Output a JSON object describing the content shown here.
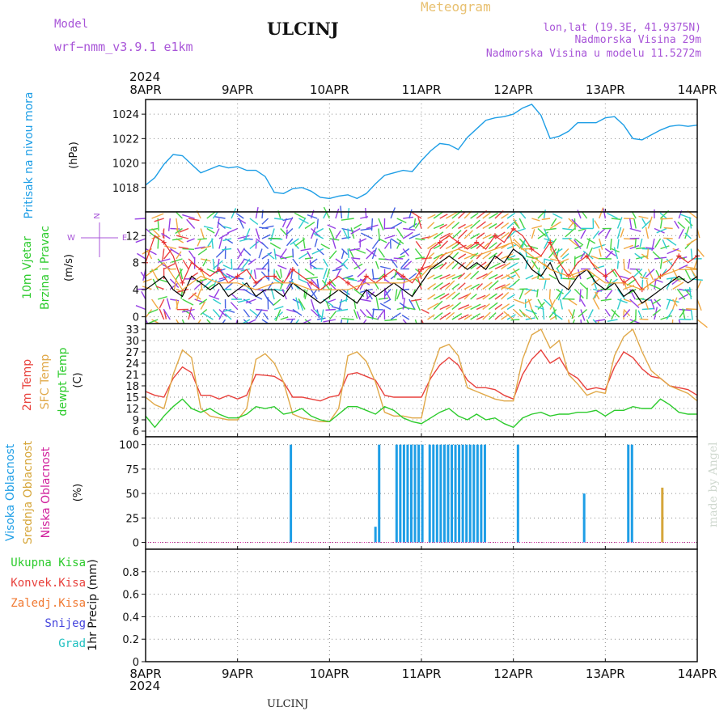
{
  "header": {
    "model_label": "Model",
    "model_name": "wrf−nmm_v3.9.1  e1km",
    "title": "ULCINJ",
    "meteogram": "Meteogram",
    "lonlat": "lon,lat (19.3E, 41.9375N)",
    "elevation": "Nadmorska Visina 29m",
    "model_elevation": "Nadmorska Visina u modelu 11.5272m"
  },
  "footer": {
    "station": "ULCINJ",
    "credit": "made by Angel"
  },
  "colors": {
    "pressure": "#1e9ee6",
    "t2m": "#e8413c",
    "tsfc": "#e0a848",
    "dewpt": "#2ccb2c",
    "high_cloud": "#1e9ee6",
    "mid_cloud": "#d6a63a",
    "low_cloud": "#d0209c",
    "wind_purple": "#8a2be2",
    "wind_blue": "#3050e0",
    "wind_cyan": "#18c8c8",
    "wind_green": "#30d030",
    "wind_orange": "#f0a030",
    "wind_red": "#e83030"
  },
  "axes": {
    "year_top": "2024",
    "year_bottom": "2024",
    "x_ticks": [
      "8APR",
      "9APR",
      "10APR",
      "11APR",
      "12APR",
      "13APR",
      "14APR"
    ]
  },
  "chart_data": [
    {
      "type": "line",
      "panel": "pressure",
      "ylabel_left": "Pritisak na nivou mora",
      "ylabel_unit": "(hPa)",
      "ylim": [
        1016,
        1025.2
      ],
      "yticks": [
        1018,
        1020,
        1022,
        1024
      ],
      "xlim": [
        0,
        6
      ],
      "grid": true,
      "series": [
        {
          "color": "#1e9ee6",
          "x": [
            0.0,
            0.1,
            0.2,
            0.3,
            0.4,
            0.5,
            0.6,
            0.7,
            0.8,
            0.9,
            1.0,
            1.1,
            1.2,
            1.3,
            1.4,
            1.5,
            1.6,
            1.7,
            1.8,
            1.9,
            2.0,
            2.1,
            2.2,
            2.3,
            2.4,
            2.5,
            2.6,
            2.7,
            2.8,
            2.9,
            3.0,
            3.1,
            3.2,
            3.3,
            3.4,
            3.5,
            3.6,
            3.7,
            3.8,
            3.9,
            4.0,
            4.1,
            4.2,
            4.3,
            4.4,
            4.5,
            4.6,
            4.7,
            4.8,
            4.9,
            5.0,
            5.1,
            5.2,
            5.3,
            5.4,
            5.5,
            5.6,
            5.7,
            5.8,
            5.9,
            6.0
          ],
          "y": [
            1018.2,
            1018.8,
            1019.9,
            1020.7,
            1020.6,
            1019.9,
            1019.2,
            1019.5,
            1019.8,
            1019.6,
            1019.7,
            1019.4,
            1019.4,
            1018.9,
            1017.6,
            1017.5,
            1017.9,
            1018.0,
            1017.7,
            1017.2,
            1017.1,
            1017.3,
            1017.4,
            1017.1,
            1017.5,
            1018.3,
            1019.0,
            1019.2,
            1019.4,
            1019.3,
            1020.2,
            1021.0,
            1021.6,
            1021.5,
            1021.1,
            1022.1,
            1022.8,
            1023.5,
            1023.7,
            1023.8,
            1024.0,
            1024.5,
            1024.8,
            1023.9,
            1022.0,
            1022.2,
            1022.6,
            1023.3,
            1023.3,
            1023.3,
            1023.7,
            1023.8,
            1023.1,
            1022.0,
            1021.9,
            1022.3,
            1022.7,
            1023.0,
            1023.1,
            1023.0,
            1023.1
          ]
        }
      ]
    },
    {
      "type": "line",
      "panel": "wind",
      "ylabel_left": "10m Vjetar",
      "ylabel_left2": "Brzina i Pravac",
      "ylabel_unit": "(m/s)",
      "compass": [
        "N",
        "E",
        "W"
      ],
      "ylim": [
        -1,
        15.5
      ],
      "yticks": [
        0,
        4,
        8,
        12
      ],
      "xlim": [
        0,
        6
      ],
      "grid": true,
      "series": [
        {
          "name": "speed",
          "color": "#000000",
          "x": [
            0.0,
            0.1,
            0.2,
            0.3,
            0.4,
            0.5,
            0.6,
            0.7,
            0.8,
            0.9,
            1.0,
            1.1,
            1.2,
            1.3,
            1.4,
            1.5,
            1.6,
            1.7,
            1.8,
            1.9,
            2.0,
            2.1,
            2.2,
            2.3,
            2.4,
            2.5,
            2.6,
            2.7,
            2.8,
            2.9,
            3.0,
            3.1,
            3.2,
            3.3,
            3.4,
            3.5,
            3.6,
            3.7,
            3.8,
            3.9,
            4.0,
            4.1,
            4.2,
            4.3,
            4.4,
            4.5,
            4.6,
            4.7,
            4.8,
            4.9,
            5.0,
            5.1,
            5.2,
            5.3,
            5.4,
            5.5,
            5.6,
            5.7,
            5.8,
            5.9,
            6.0
          ],
          "y": [
            4,
            5,
            6,
            4,
            3,
            6,
            5,
            4,
            5,
            3,
            4,
            5,
            3,
            4,
            4,
            3,
            5,
            4,
            3,
            2,
            3,
            4,
            3,
            2,
            4,
            3,
            4,
            5,
            4,
            3,
            5,
            7,
            8,
            9,
            8,
            7,
            8,
            7,
            9,
            8,
            10,
            9,
            7,
            6,
            8,
            5,
            4,
            6,
            7,
            5,
            4,
            5,
            3,
            4,
            2,
            3,
            4,
            5,
            6,
            5,
            6
          ]
        },
        {
          "name": "gust",
          "color": "#e83030",
          "x": [
            0.0,
            0.1,
            0.2,
            0.3,
            0.4,
            0.5,
            0.6,
            0.7,
            0.8,
            0.9,
            1.0,
            1.1,
            1.2,
            1.3,
            1.4,
            1.5,
            1.6,
            1.7,
            1.8,
            1.9,
            2.0,
            2.1,
            2.2,
            2.3,
            2.4,
            2.5,
            2.6,
            2.7,
            2.8,
            2.9,
            3.0,
            3.1,
            3.2,
            3.3,
            3.4,
            3.5,
            3.6,
            3.7,
            3.8,
            3.9,
            4.0,
            4.1,
            4.2,
            4.3,
            4.4,
            4.5,
            4.6,
            4.7,
            4.8,
            4.9,
            5.0,
            5.1,
            5.2,
            5.3,
            5.4,
            5.5,
            5.6,
            5.7,
            5.8,
            5.9,
            6.0
          ],
          "y": [
            8,
            12,
            11,
            9,
            5,
            8,
            7,
            6,
            7,
            5,
            6,
            7,
            5,
            6,
            6,
            5,
            7,
            6,
            5,
            4,
            5,
            6,
            5,
            4,
            6,
            5,
            6,
            7,
            6,
            5,
            7,
            10,
            11,
            12,
            11,
            10,
            11,
            10,
            12,
            11,
            13,
            12,
            10,
            9,
            11,
            8,
            6,
            8,
            9,
            7,
            6,
            7,
            5,
            6,
            4,
            5,
            6,
            7,
            9,
            8,
            9
          ]
        },
        {
          "name": "speed_orange",
          "color": "#f0a030",
          "x": [
            0.0,
            0.2,
            0.4,
            0.6,
            0.8,
            1.0,
            1.2,
            1.4,
            1.6,
            1.8,
            2.0,
            2.2,
            2.4,
            2.6,
            2.8,
            3.0,
            3.2,
            3.4,
            3.6,
            3.8,
            4.0,
            4.2,
            4.4,
            4.6,
            4.8,
            5.0,
            5.2,
            5.4,
            5.6,
            5.8,
            6.0
          ],
          "y": [
            6,
            8,
            4,
            6,
            5,
            5,
            4,
            5,
            5,
            4,
            4,
            4,
            5,
            5,
            5,
            6,
            9,
            10,
            9,
            10,
            11,
            9,
            7,
            6,
            7,
            5,
            5,
            4,
            6,
            7,
            7
          ]
        }
      ]
    },
    {
      "type": "line",
      "panel": "temperature",
      "ylabel_left": "2m Temp",
      "ylabel_left2": "SFC Temp",
      "ylabel_left3": "dewpt Temp",
      "ylabel_unit": "(C)",
      "ylim": [
        4.5,
        34.5
      ],
      "yticks": [
        6,
        9,
        12,
        15,
        18,
        21,
        24,
        27,
        30,
        33
      ],
      "xlim": [
        0,
        6
      ],
      "grid": true,
      "series": [
        {
          "name": "2m Temp",
          "color": "#e8413c",
          "x": [
            0.0,
            0.1,
            0.2,
            0.3,
            0.4,
            0.5,
            0.6,
            0.7,
            0.8,
            0.9,
            1.0,
            1.1,
            1.2,
            1.3,
            1.4,
            1.5,
            1.6,
            1.7,
            1.8,
            1.9,
            2.0,
            2.1,
            2.2,
            2.3,
            2.4,
            2.5,
            2.6,
            2.7,
            2.8,
            2.9,
            3.0,
            3.1,
            3.2,
            3.3,
            3.4,
            3.5,
            3.6,
            3.7,
            3.8,
            3.9,
            4.0,
            4.1,
            4.2,
            4.3,
            4.4,
            4.5,
            4.6,
            4.7,
            4.8,
            4.9,
            5.0,
            5.1,
            5.2,
            5.3,
            5.4,
            5.5,
            5.6,
            5.7,
            5.8,
            5.9,
            6.0
          ],
          "y": [
            16.5,
            15.5,
            15.0,
            20.0,
            23.0,
            21.5,
            15.5,
            15.5,
            14.5,
            15.5,
            14.5,
            15.5,
            21.0,
            20.8,
            20.5,
            19.0,
            15.0,
            15.0,
            14.5,
            14.0,
            15.0,
            15.5,
            21.0,
            21.5,
            20.5,
            19.5,
            15.5,
            15.0,
            15.0,
            15.0,
            15.0,
            20.0,
            23.5,
            25.5,
            23.5,
            19.5,
            17.5,
            17.5,
            17.0,
            15.5,
            14.5,
            21.0,
            25.0,
            27.5,
            24.0,
            25.5,
            21.5,
            20.0,
            17.0,
            17.5,
            17.0,
            23.0,
            27.0,
            25.5,
            22.5,
            20.5,
            20.0,
            18.0,
            17.5,
            17.0,
            15.5
          ]
        },
        {
          "name": "SFC Temp",
          "color": "#e0a848",
          "x": [
            0.0,
            0.1,
            0.2,
            0.3,
            0.4,
            0.5,
            0.6,
            0.7,
            0.8,
            0.9,
            1.0,
            1.1,
            1.2,
            1.3,
            1.4,
            1.5,
            1.6,
            1.7,
            1.8,
            1.9,
            2.0,
            2.1,
            2.2,
            2.3,
            2.4,
            2.5,
            2.6,
            2.7,
            2.8,
            2.9,
            3.0,
            3.1,
            3.2,
            3.3,
            3.4,
            3.5,
            3.6,
            3.7,
            3.8,
            3.9,
            4.0,
            4.1,
            4.2,
            4.3,
            4.4,
            4.5,
            4.6,
            4.7,
            4.8,
            4.9,
            5.0,
            5.1,
            5.2,
            5.3,
            5.4,
            5.5,
            5.6,
            5.7,
            5.8,
            5.9,
            6.0
          ],
          "y": [
            15.0,
            13.0,
            12.0,
            21.0,
            27.5,
            25.5,
            12.0,
            10.0,
            9.5,
            9.0,
            9.0,
            12.0,
            25.0,
            26.5,
            24.0,
            19.0,
            10.5,
            9.5,
            9.0,
            8.5,
            8.5,
            12.0,
            26.0,
            27.0,
            24.5,
            19.0,
            11.0,
            10.0,
            10.0,
            9.5,
            9.5,
            21.0,
            28.0,
            29.0,
            26.0,
            17.5,
            16.5,
            15.5,
            14.5,
            14.0,
            14.0,
            25.0,
            31.5,
            33.0,
            28.0,
            30.0,
            21.0,
            18.5,
            15.5,
            16.5,
            16.0,
            26.0,
            31.0,
            33.0,
            27.0,
            22.0,
            20.0,
            18.0,
            17.0,
            16.0,
            14.0
          ]
        },
        {
          "name": "dewpt Temp",
          "color": "#2ccb2c",
          "x": [
            0.0,
            0.1,
            0.2,
            0.3,
            0.4,
            0.5,
            0.6,
            0.7,
            0.8,
            0.9,
            1.0,
            1.1,
            1.2,
            1.3,
            1.4,
            1.5,
            1.6,
            1.7,
            1.8,
            1.9,
            2.0,
            2.1,
            2.2,
            2.3,
            2.4,
            2.5,
            2.6,
            2.7,
            2.8,
            2.9,
            3.0,
            3.1,
            3.2,
            3.3,
            3.4,
            3.5,
            3.6,
            3.7,
            3.8,
            3.9,
            4.0,
            4.1,
            4.2,
            4.3,
            4.4,
            4.5,
            4.6,
            4.7,
            4.8,
            4.9,
            5.0,
            5.1,
            5.2,
            5.3,
            5.4,
            5.5,
            5.6,
            5.7,
            5.8,
            5.9,
            6.0
          ],
          "y": [
            10.0,
            7.0,
            10.0,
            12.5,
            14.5,
            12.0,
            11.0,
            12.0,
            10.5,
            9.5,
            9.5,
            10.5,
            12.5,
            12.0,
            12.5,
            10.5,
            11.0,
            12.0,
            10.0,
            9.0,
            8.5,
            10.5,
            12.5,
            12.5,
            11.5,
            10.5,
            12.5,
            11.5,
            9.5,
            8.5,
            8.0,
            9.5,
            11.0,
            12.0,
            10.0,
            9.0,
            10.5,
            9.0,
            9.5,
            8.0,
            7.0,
            9.5,
            10.5,
            11.0,
            10.0,
            10.5,
            10.5,
            11.0,
            11.0,
            11.5,
            10.0,
            11.5,
            11.5,
            12.5,
            12.0,
            12.0,
            14.5,
            13.0,
            11.0,
            10.5,
            10.5
          ]
        }
      ]
    },
    {
      "type": "bar",
      "panel": "cloud",
      "ylabel_left": "Visoka Oblacnost",
      "ylabel_left2": "Srednja Oblacnost",
      "ylabel_left3": "Niska Oblacnost",
      "ylabel_unit": "(%)",
      "ylim": [
        -7,
        108
      ],
      "yticks": [
        0,
        25,
        50,
        75,
        100
      ],
      "xlim": [
        0,
        6
      ],
      "grid": true,
      "series": [
        {
          "name": "Visoka Oblacnost",
          "color": "#1e9ee6",
          "x": [
            1.58,
            2.5,
            2.54,
            2.73,
            2.77,
            2.81,
            2.85,
            2.89,
            2.93,
            2.97,
            3.01,
            3.09,
            3.13,
            3.17,
            3.21,
            3.25,
            3.29,
            3.33,
            3.37,
            3.41,
            3.45,
            3.49,
            3.53,
            3.57,
            3.61,
            3.65,
            3.69,
            4.05,
            4.77,
            5.25,
            5.29
          ],
          "values": [
            100,
            16,
            100,
            100,
            100,
            100,
            100,
            100,
            100,
            100,
            100,
            100,
            100,
            100,
            100,
            100,
            100,
            100,
            100,
            100,
            100,
            100,
            100,
            100,
            100,
            100,
            100,
            100,
            50,
            100,
            100
          ]
        },
        {
          "name": "Srednja Oblacnost",
          "color": "#d6a63a",
          "x": [
            5.62
          ],
          "values": [
            56
          ]
        }
      ]
    },
    {
      "type": "line",
      "panel": "precip",
      "ylabel_unit": "1hr Precip (mm)",
      "legend": [
        "Ukupna  Kisa",
        "Konvek.Kisa",
        "Zaledj.Kisa",
        "Snijeg",
        "Grad"
      ],
      "legend_colors": [
        "#2ccb2c",
        "#e8413c",
        "#f07830",
        "#4444dd",
        "#20c0c0"
      ],
      "ylim": [
        0,
        1
      ],
      "yticks": [
        0,
        0.2,
        0.4,
        0.6,
        0.8
      ],
      "ytick_labels": [
        "0",
        "0.2",
        "0.4",
        "0.6",
        "0.8"
      ],
      "xlim": [
        0,
        6
      ],
      "grid": true,
      "series": []
    }
  ]
}
